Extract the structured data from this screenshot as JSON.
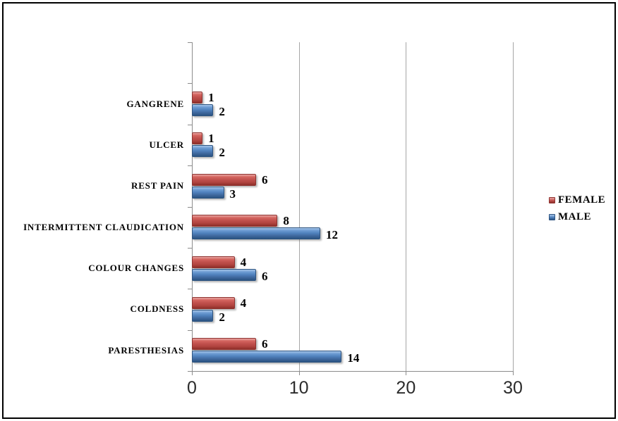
{
  "figure": {
    "background_color": "#ffffff",
    "border_color": "#000000"
  },
  "chart_data": {
    "type": "bar",
    "orientation": "horizontal",
    "title": "",
    "xlabel": "",
    "ylabel": "",
    "categories": [
      "GANGRENE",
      "ULCER",
      "REST PAIN",
      "INTERMITTENT CLAUDICATION",
      "COLOUR CHANGES",
      "COLDNESS",
      "PARESTHESIAS"
    ],
    "series": [
      {
        "name": "FEMALE",
        "color": "#C0504D",
        "values": [
          1,
          1,
          6,
          8,
          4,
          4,
          6
        ]
      },
      {
        "name": "MALE",
        "color": "#4F81BD",
        "values": [
          2,
          2,
          3,
          12,
          6,
          2,
          14
        ]
      }
    ],
    "xlim": [
      0,
      30
    ],
    "x_ticks": [
      0,
      10,
      20,
      30
    ],
    "x_tick_labels": [
      "0",
      "10",
      "20",
      "30"
    ],
    "grid": true,
    "gridline_color": "#a6a6a6",
    "axis_color": "#8c8c8c",
    "data_labels": true,
    "legend_position": "right"
  }
}
